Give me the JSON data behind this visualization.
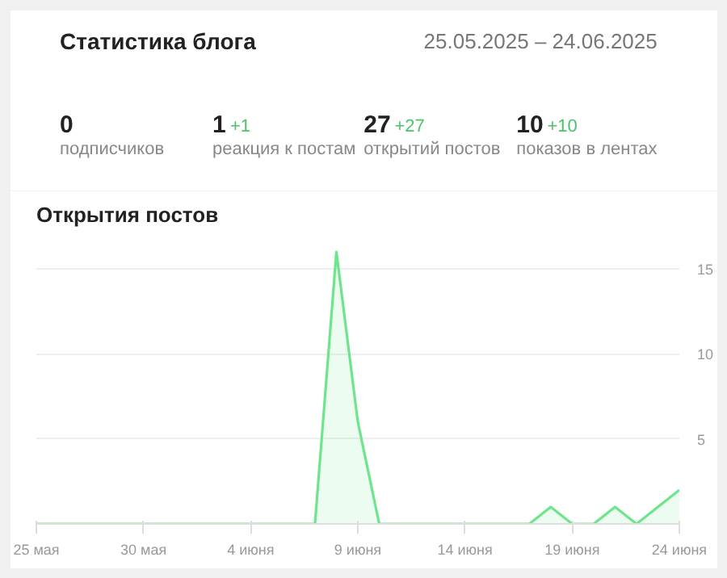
{
  "chart_data": [
    {
      "type": "other",
      "title": "Статистика блога",
      "subtitle": "25.05.2025 – 24.06.2025",
      "annotations": [
        "0",
        "подписчиков",
        "1",
        "+1",
        "реакция к постам",
        "27",
        "+27",
        "открытий постов",
        "10",
        "+10",
        "показов в лентах"
      ]
    },
    {
      "type": "area",
      "title": "Открытия постов",
      "color": "#6ee58c",
      "x": [
        "2025-05-25",
        "2025-05-26",
        "2025-05-27",
        "2025-05-28",
        "2025-05-29",
        "2025-05-30",
        "2025-05-31",
        "2025-06-01",
        "2025-06-02",
        "2025-06-03",
        "2025-06-04",
        "2025-06-05",
        "2025-06-06",
        "2025-06-07",
        "2025-06-08",
        "2025-06-09",
        "2025-06-10",
        "2025-06-11",
        "2025-06-12",
        "2025-06-13",
        "2025-06-14",
        "2025-06-15",
        "2025-06-16",
        "2025-06-17",
        "2025-06-18",
        "2025-06-19",
        "2025-06-20",
        "2025-06-21",
        "2025-06-22",
        "2025-06-23",
        "2025-06-24"
      ],
      "values": [
        0,
        0,
        0,
        0,
        0,
        0,
        0,
        0,
        0,
        0,
        0,
        0,
        0,
        0,
        16,
        6,
        0,
        0,
        0,
        0,
        0,
        0,
        0,
        0,
        1,
        0,
        0,
        1,
        0,
        1,
        2
      ],
      "xlim": [
        "2025-05-25",
        "2025-06-24"
      ],
      "ylim": [
        0,
        17
      ],
      "xticks": [
        {
          "value": "2025-05-25",
          "label": "25 мая"
        },
        {
          "value": "2025-05-30",
          "label": "30 мая"
        },
        {
          "value": "2025-06-04",
          "label": "4 июня"
        },
        {
          "value": "2025-06-09",
          "label": "9 июня"
        },
        {
          "value": "2025-06-14",
          "label": "14 июня"
        },
        {
          "value": "2025-06-19",
          "label": "19 июня"
        },
        {
          "value": "2025-06-24",
          "label": "24 июня"
        }
      ],
      "yticks": [
        {
          "value": 0,
          "label": null
        },
        5,
        10,
        15
      ],
      "grid": "y"
    }
  ]
}
